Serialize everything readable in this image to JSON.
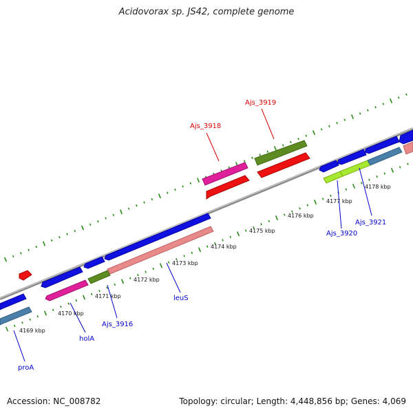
{
  "header": {
    "title": "Acidovorax sp. JS42, complete genome"
  },
  "footer": {
    "accession": "Accession: NC_008782",
    "summary": "Topology: circular; Length: 4,448,856 bp; Genes: 4,069"
  },
  "map": {
    "kbp_labels": [
      {
        "text": "4169 kbp",
        "kbp": 4169
      },
      {
        "text": "4170 kbp",
        "kbp": 4170
      },
      {
        "text": "4171 kbp",
        "kbp": 4171
      },
      {
        "text": "4172 kbp",
        "kbp": 4172
      },
      {
        "text": "4173 kbp",
        "kbp": 4173
      },
      {
        "text": "4174 kbp",
        "kbp": 4174
      },
      {
        "text": "4175 kbp",
        "kbp": 4175
      },
      {
        "text": "4176 kbp",
        "kbp": 4176
      },
      {
        "text": "4177 kbp",
        "kbp": 4177
      },
      {
        "text": "4178 kbp",
        "kbp": 4178
      }
    ],
    "gene_labels": [
      {
        "text": "Ajs_3918",
        "color": "#dd0000"
      },
      {
        "text": "Ajs_3919",
        "color": "#dd0000"
      },
      {
        "text": "Ajs_3920",
        "color": "#0000cc"
      },
      {
        "text": "Ajs_3921",
        "color": "#0000cc"
      },
      {
        "text": "leuS",
        "color": "#0000cc"
      },
      {
        "text": "Ajs_3916",
        "color": "#0000cc"
      },
      {
        "text": "holA",
        "color": "#0000cc"
      },
      {
        "text": "proA",
        "color": "#0000cc"
      }
    ],
    "colors": {
      "backbone": "#8a8a8a",
      "ticks": "#2a8a1a",
      "blue": "#1010e0",
      "steel": "#4a7fa8",
      "salmon": "#e88a8a",
      "pink": "#e0209a",
      "red": "#ee1111",
      "olive": "#5e8a22",
      "lime": "#a8e830"
    }
  }
}
